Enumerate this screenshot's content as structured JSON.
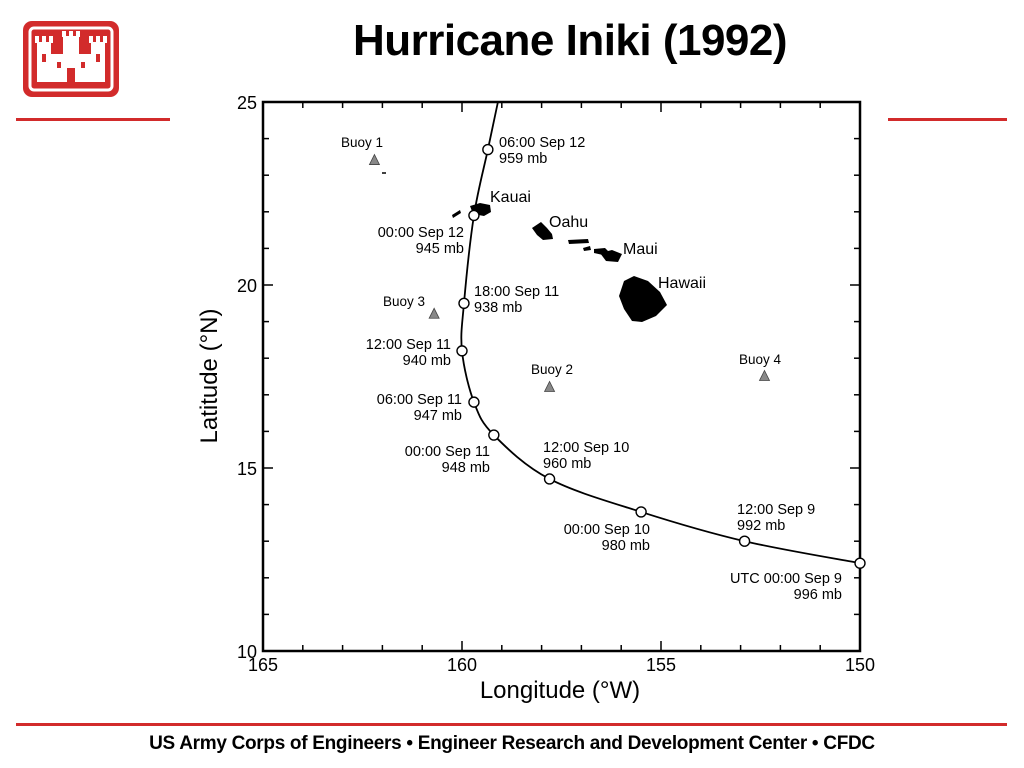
{
  "slide": {
    "title": "Hurricane Iniki (1992)",
    "footer": "US Army Corps of Engineers • Engineer Research and Development Center • CFDC",
    "accent_color": "#d22b2b",
    "logo_icon": "castle-icon"
  },
  "chart_data": {
    "type": "scatter",
    "xlabel": "Longitude (°W)",
    "ylabel": "Latitude (°N)",
    "xlim": [
      165,
      150
    ],
    "ylim": [
      10,
      25
    ],
    "xticks": [
      "165",
      "160",
      "155",
      "150"
    ],
    "yticks": [
      "10",
      "15",
      "20",
      "25"
    ],
    "grid": false,
    "track": [
      {
        "lon": 150.0,
        "lat": 12.4,
        "label": [
          "UTC 00:00 Sep 9",
          "996 mb"
        ]
      },
      {
        "lon": 152.9,
        "lat": 13.0,
        "label": [
          "12:00 Sep 9",
          "992 mb"
        ]
      },
      {
        "lon": 155.5,
        "lat": 13.8,
        "label": [
          "00:00 Sep 10",
          "980 mb"
        ]
      },
      {
        "lon": 157.8,
        "lat": 14.7,
        "label": [
          "12:00 Sep 10",
          "960 mb"
        ]
      },
      {
        "lon": 159.2,
        "lat": 15.9,
        "label": [
          "00:00 Sep 11",
          "948 mb"
        ]
      },
      {
        "lon": 159.7,
        "lat": 16.8,
        "label": [
          "06:00 Sep 11",
          "947 mb"
        ]
      },
      {
        "lon": 160.0,
        "lat": 18.2,
        "label": [
          "12:00 Sep 11",
          "940 mb"
        ]
      },
      {
        "lon": 159.95,
        "lat": 19.5,
        "label": [
          "18:00 Sep 11",
          "938 mb"
        ]
      },
      {
        "lon": 159.7,
        "lat": 21.9,
        "label": [
          "00:00 Sep 12",
          "945 mb"
        ]
      },
      {
        "lon": 159.35,
        "lat": 23.7,
        "label": [
          "06:00 Sep 12",
          "959 mb"
        ]
      }
    ],
    "buoys": [
      {
        "name": "Buoy 1",
        "lon": 162.2,
        "lat": 23.4
      },
      {
        "name": "Buoy 2",
        "lon": 157.8,
        "lat": 17.2
      },
      {
        "name": "Buoy 3",
        "lon": 160.7,
        "lat": 19.2
      },
      {
        "name": "Buoy 4",
        "lon": 152.4,
        "lat": 17.5
      }
    ],
    "islands": [
      {
        "name": "Kauai",
        "lon": 159.5,
        "lat": 22.1
      },
      {
        "name": "Oahu",
        "lon": 158.0,
        "lat": 21.5
      },
      {
        "name": "Maui",
        "lon": 156.3,
        "lat": 20.8
      },
      {
        "name": "Hawaii",
        "lon": 155.5,
        "lat": 19.6
      }
    ]
  }
}
